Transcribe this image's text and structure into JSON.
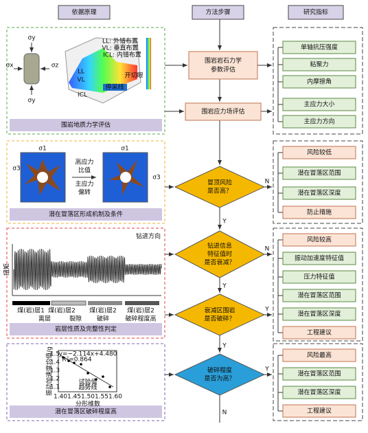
{
  "headers": [
    "依据原理",
    "方法步骤",
    "研究指标"
  ],
  "panels": [
    {
      "caption": "围岩地质力学评估",
      "labels": [
        "σy",
        "σx",
        "σz",
        "σy",
        "LL: 外错布置",
        "VL: 垂直布置",
        "ICL: 内错布置",
        "开切眼",
        "停采线",
        "LL",
        "VL",
        "ICL"
      ]
    },
    {
      "caption": "潜在冒落区形成机制及条件",
      "labels": [
        "高应力",
        "比值",
        "主应力",
        "偏转",
        "σ1",
        "σ3",
        "σ1",
        "σ3"
      ]
    },
    {
      "caption": "岩层性质及完整性判定",
      "labels": [
        "钻进方向",
        "扭矩",
        "煤(岩)层1",
        "煤(岩)层2",
        "煤(岩)层2",
        "煤(岩)层2",
        "离层",
        "裂隙",
        "破碎",
        "破碎程度高"
      ]
    },
    {
      "caption": "潜在冒落区破碎程度高",
      "labels": [
        "y=−2.114x+4.480",
        "R²=0.864",
        "试验值",
        "趋势线",
        "分形维数",
        "振动加速度均值/g"
      ],
      "xticks": [
        "1.40",
        "1.45",
        "1.50",
        "1.55",
        "1.60"
      ],
      "yticks": [
        "1.5",
        "1.4",
        "1.3",
        "1.2",
        "1.1"
      ]
    }
  ],
  "steps": [
    [
      "围岩岩石力学",
      "参数评估"
    ],
    [
      "围岩应力场评估"
    ]
  ],
  "decisions": [
    [
      "冒顶风险",
      "是否高？"
    ],
    [
      "钻进信息",
      "特征值时",
      "是否衰减？"
    ],
    [
      "衰减区围岩",
      "是否破碎？"
    ],
    [
      "破碎程度",
      "是否为高？"
    ]
  ],
  "branch": {
    "yes": "Y",
    "no": "N"
  },
  "indicators": [
    [
      "单轴抗压强度",
      "粘聚力",
      "内摩擦角",
      "主应力大小",
      "主应力方向"
    ],
    [
      "风险较低",
      "潜在冒落区范围",
      "潜在冒落区深度",
      "防止措施"
    ],
    [
      "风险较高",
      "振动加速度特征值",
      "压力特征值",
      "潜在冒落区范围",
      "潜在冒落区深度",
      "工程建议"
    ],
    [
      "风险最高",
      "潜在冒落区范围",
      "潜在冒落区深度",
      "工程建议"
    ]
  ]
}
